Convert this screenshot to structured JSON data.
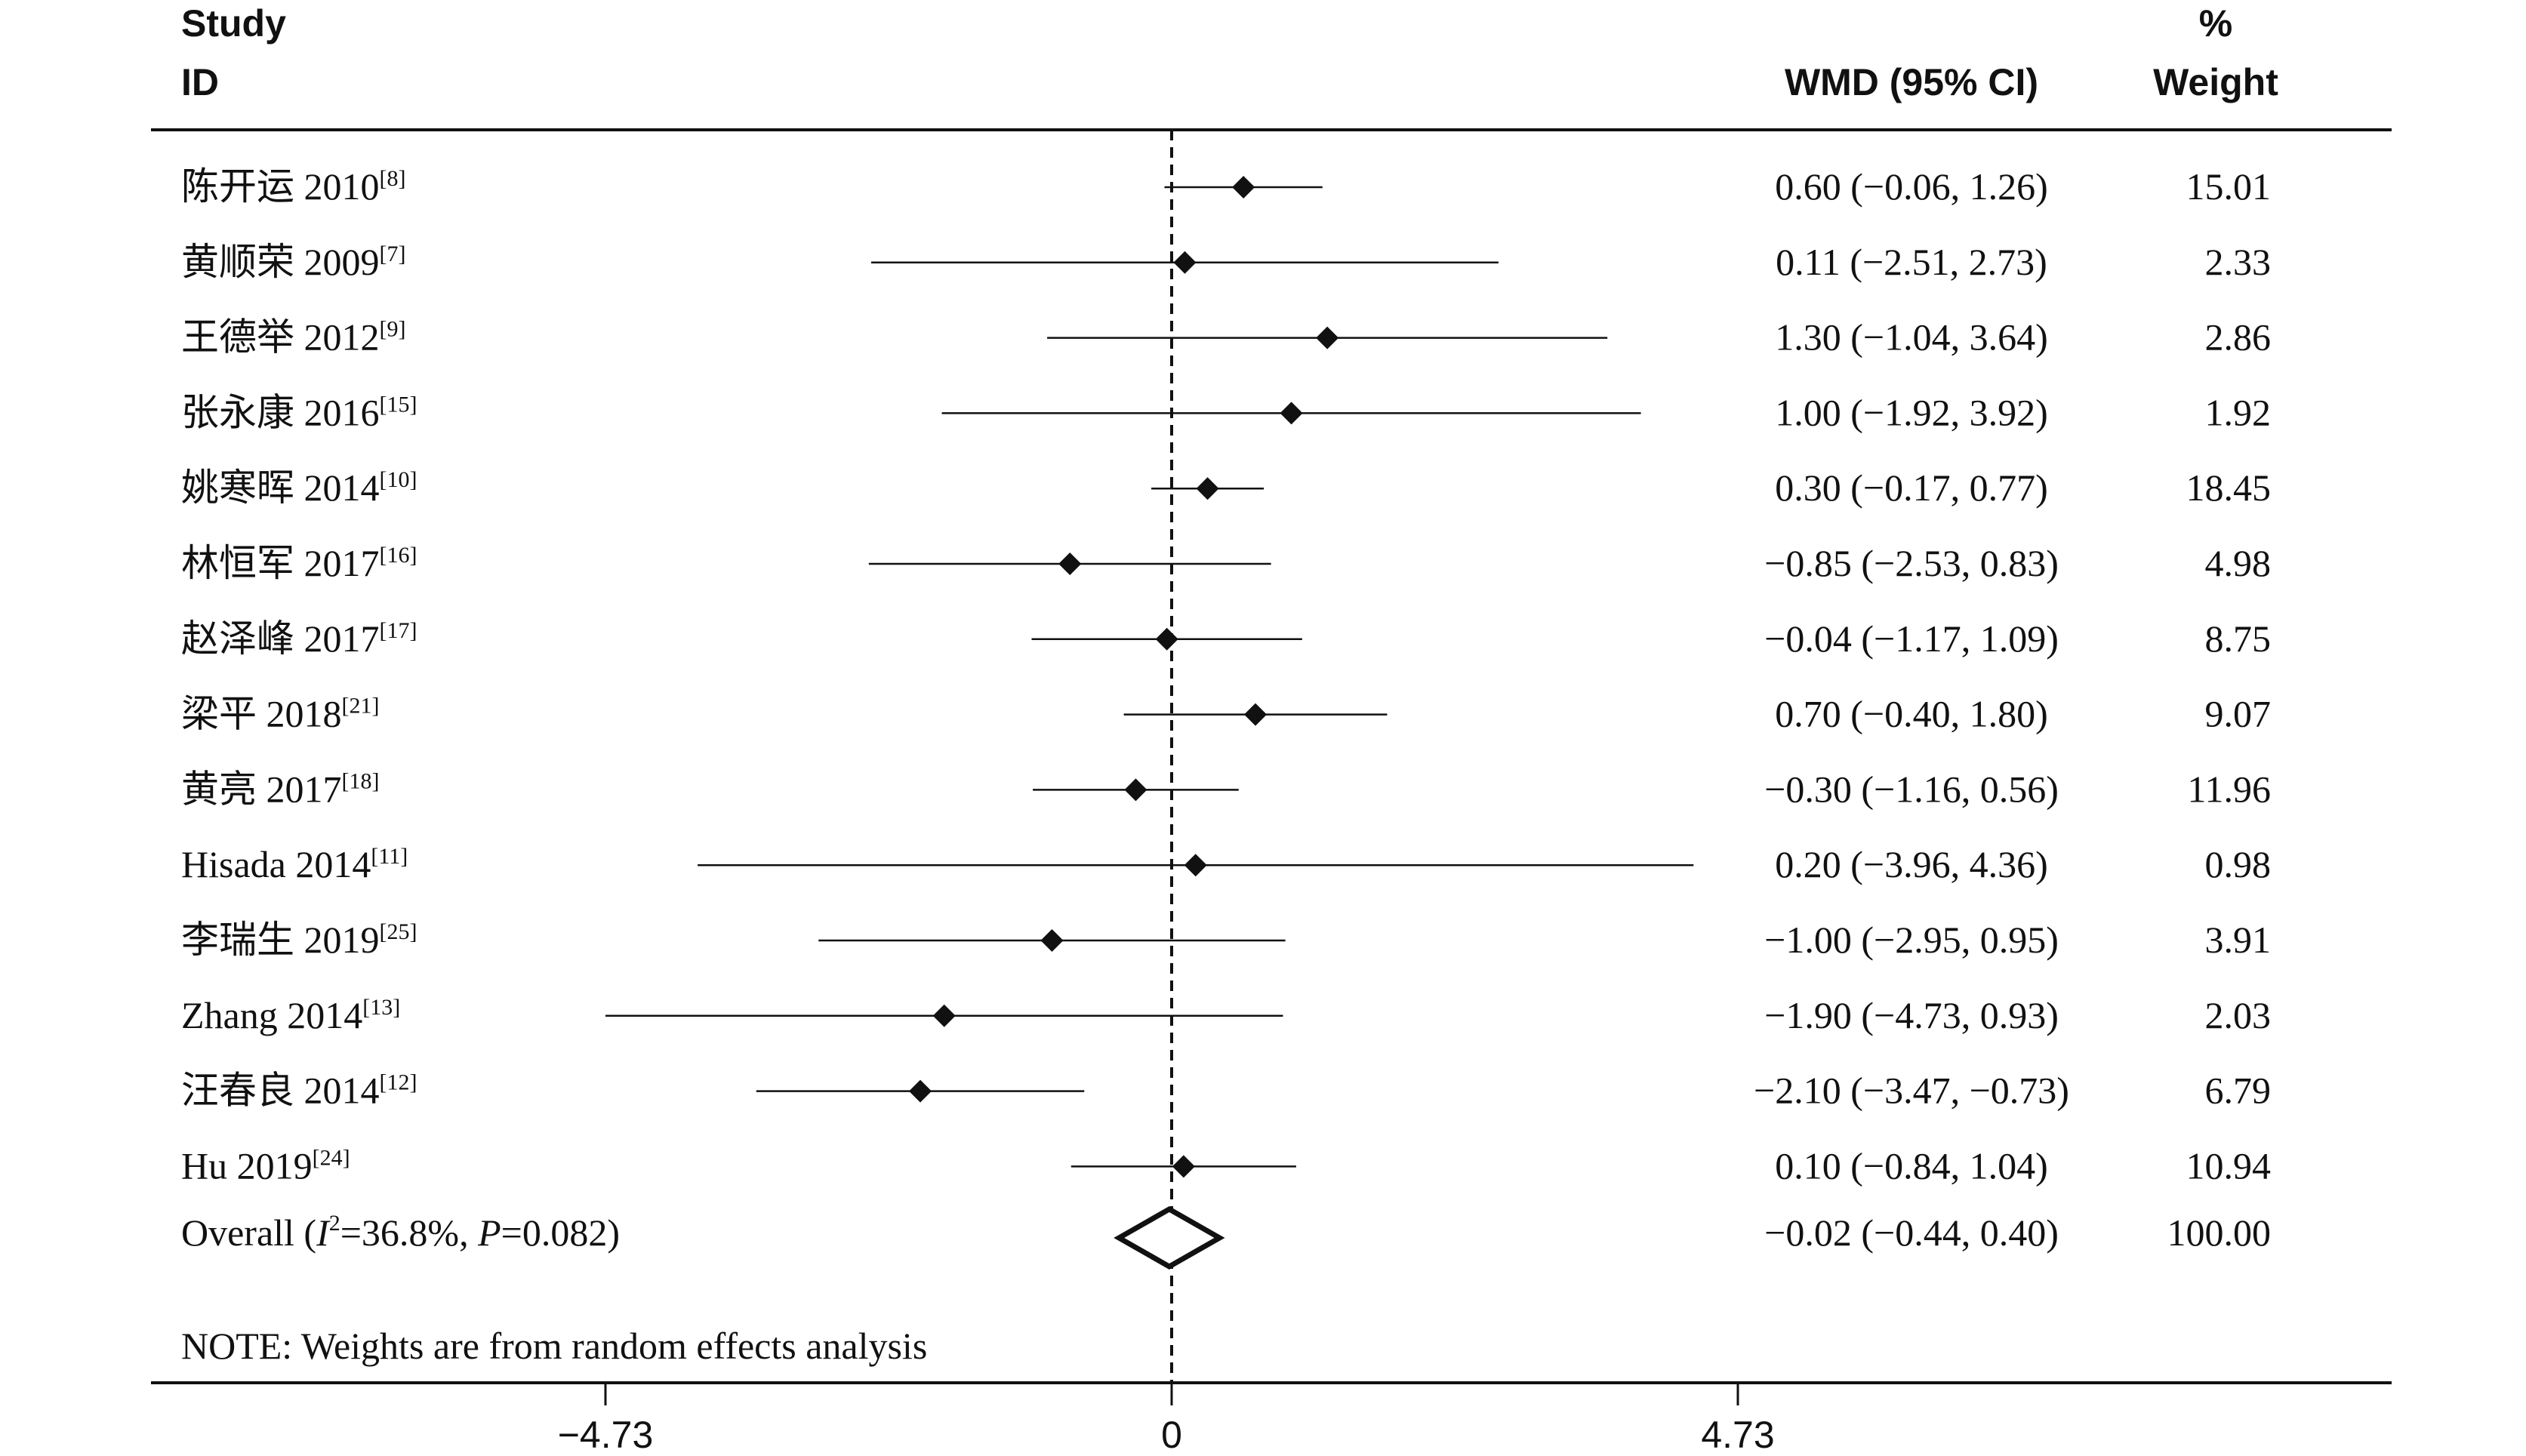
{
  "chart_data": {
    "type": "forest",
    "header": {
      "study_line1": "Study",
      "study_line2": "ID",
      "effect": "WMD (95% CI)",
      "weight_line1": "%",
      "weight_line2": "Weight"
    },
    "studies": [
      {
        "name": "陈开运 2010",
        "ref": "[8]",
        "effect": 0.6,
        "lo": -0.06,
        "hi": 1.26,
        "ci_text": "0.60 (−0.06, 1.26)",
        "weight": "15.01"
      },
      {
        "name": "黄顺荣 2009",
        "ref": "[7]",
        "effect": 0.11,
        "lo": -2.51,
        "hi": 2.73,
        "ci_text": "0.11 (−2.51, 2.73)",
        "weight": "2.33"
      },
      {
        "name": "王德举 2012",
        "ref": "[9]",
        "effect": 1.3,
        "lo": -1.04,
        "hi": 3.64,
        "ci_text": "1.30 (−1.04, 3.64)",
        "weight": "2.86"
      },
      {
        "name": "张永康 2016",
        "ref": "[15]",
        "effect": 1.0,
        "lo": -1.92,
        "hi": 3.92,
        "ci_text": "1.00 (−1.92, 3.92)",
        "weight": "1.92"
      },
      {
        "name": "姚寒晖 2014",
        "ref": "[10]",
        "effect": 0.3,
        "lo": -0.17,
        "hi": 0.77,
        "ci_text": "0.30 (−0.17, 0.77)",
        "weight": "18.45"
      },
      {
        "name": "林恒军 2017",
        "ref": "[16]",
        "effect": -0.85,
        "lo": -2.53,
        "hi": 0.83,
        "ci_text": "−0.85 (−2.53, 0.83)",
        "weight": "4.98"
      },
      {
        "name": "赵泽峰 2017",
        "ref": "[17]",
        "effect": -0.04,
        "lo": -1.17,
        "hi": 1.09,
        "ci_text": "−0.04 (−1.17, 1.09)",
        "weight": "8.75"
      },
      {
        "name": "梁平 2018",
        "ref": "[21]",
        "effect": 0.7,
        "lo": -0.4,
        "hi": 1.8,
        "ci_text": "0.70 (−0.40, 1.80)",
        "weight": "9.07"
      },
      {
        "name": "黄亮 2017",
        "ref": "[18]",
        "effect": -0.3,
        "lo": -1.16,
        "hi": 0.56,
        "ci_text": "−0.30 (−1.16, 0.56)",
        "weight": "11.96"
      },
      {
        "name": "Hisada 2014",
        "ref": "[11]",
        "effect": 0.2,
        "lo": -3.96,
        "hi": 4.36,
        "ci_text": "0.20 (−3.96, 4.36)",
        "weight": "0.98"
      },
      {
        "name": "李瑞生 2019",
        "ref": "[25]",
        "effect": -1.0,
        "lo": -2.95,
        "hi": 0.95,
        "ci_text": "−1.00 (−2.95, 0.95)",
        "weight": "3.91"
      },
      {
        "name": "Zhang 2014",
        "ref": "[13]",
        "effect": -1.9,
        "lo": -4.73,
        "hi": 0.93,
        "ci_text": "−1.90 (−4.73, 0.93)",
        "weight": "2.03"
      },
      {
        "name": "汪春良 2014",
        "ref": "[12]",
        "effect": -2.1,
        "lo": -3.47,
        "hi": -0.73,
        "ci_text": "−2.10 (−3.47, −0.73)",
        "weight": "6.79"
      },
      {
        "name": "Hu 2019",
        "ref": "[24]",
        "effect": 0.1,
        "lo": -0.84,
        "hi": 1.04,
        "ci_text": "0.10 (−0.84, 1.04)",
        "weight": "10.94"
      }
    ],
    "overall": {
      "label_prefix": "Overall  (",
      "i_symbol": "I",
      "i_exp": "2",
      "i_value": "=36.8%, ",
      "p_symbol": "P",
      "p_value": "=0.082)",
      "effect": -0.02,
      "lo": -0.44,
      "hi": 0.4,
      "ci_text": "−0.02 (−0.44, 0.40)",
      "weight": "100.00"
    },
    "note": "NOTE: Weights are from random effects analysis",
    "x_ticks": [
      {
        "value": -4.73,
        "label": "−4.73"
      },
      {
        "value": 0,
        "label": "0"
      },
      {
        "value": 4.73,
        "label": "4.73"
      }
    ],
    "xlim": [
      -4.73,
      4.73
    ],
    "null_line": 0
  }
}
